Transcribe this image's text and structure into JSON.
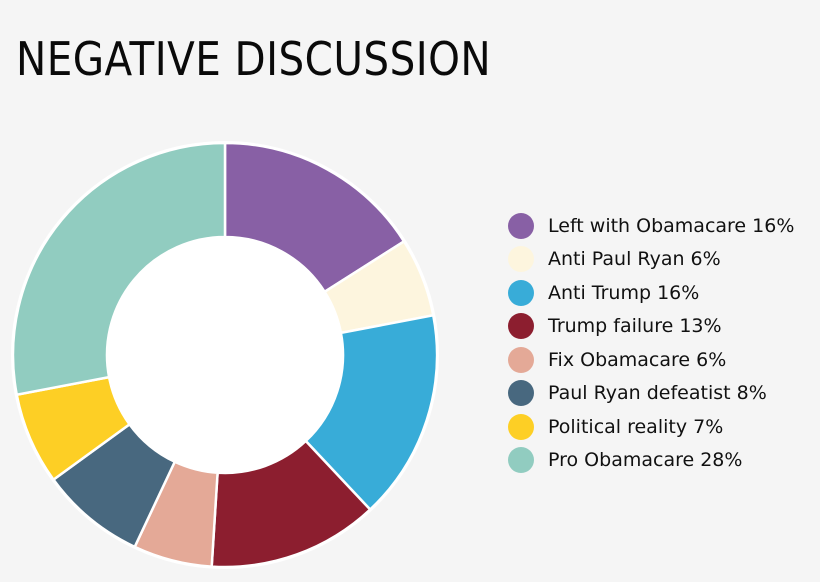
{
  "title": "NEGATIVE DISCUSSION",
  "chart_data": {
    "type": "pie",
    "variant": "donut",
    "title": "NEGATIVE DISCUSSION",
    "start_angle_deg": 0,
    "direction": "clockwise",
    "legend_position": "right",
    "categories": [
      "Left with Obamacare",
      "Anti Paul Ryan",
      "Anti Trump",
      "Trump failure",
      "Fix Obamacare",
      "Paul Ryan defeatist",
      "Political reality",
      "Pro Obamacare"
    ],
    "values": [
      16,
      6,
      16,
      13,
      6,
      8,
      7,
      28
    ],
    "unit": "%",
    "colors": [
      "#8860a5",
      "#fdf5de",
      "#38acd8",
      "#8c1e2f",
      "#e4a997",
      "#48687f",
      "#fdcf25",
      "#91ccc0"
    ]
  },
  "legend": {
    "items": [
      {
        "label": "Left with Obamacare 16%"
      },
      {
        "label": "Anti Paul Ryan 6%"
      },
      {
        "label": "Anti Trump 16%"
      },
      {
        "label": "Trump failure 13%"
      },
      {
        "label": "Fix Obamacare 6%"
      },
      {
        "label": "Paul Ryan defeatist 8%"
      },
      {
        "label": "Political reality 7%"
      },
      {
        "label": "Pro Obamacare 28%"
      }
    ]
  }
}
